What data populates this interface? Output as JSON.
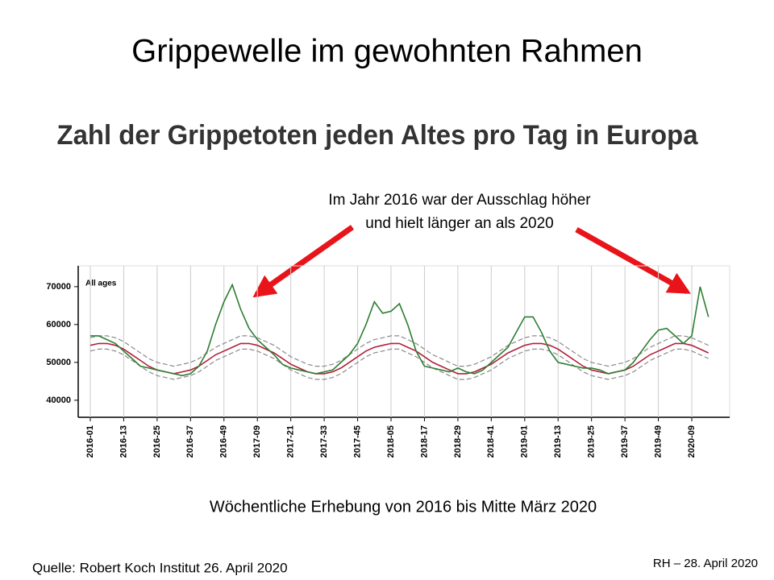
{
  "title": "Grippewelle im gewohnten Rahmen",
  "chart_data": {
    "type": "line",
    "title": "Zahl der Grippetoten jeden Altes pro Tag in Europa",
    "annotation": [
      "Im Jahr 2016 war der Ausschlag höher",
      "und hielt länger an als 2020"
    ],
    "panel_label": "All ages",
    "x_label": "Wöchentliche Erhebung von 2016 bis Mitte März 2020",
    "categories": [
      "2016-01",
      null,
      null,
      null,
      "2016-13",
      null,
      null,
      null,
      "2016-25",
      null,
      null,
      null,
      "2016-37",
      null,
      null,
      null,
      "2016-49",
      null,
      null,
      null,
      "2017-09",
      null,
      null,
      null,
      "2017-21",
      null,
      null,
      null,
      "2017-33",
      null,
      null,
      null,
      "2017-45",
      null,
      null,
      null,
      "2018-05",
      null,
      null,
      null,
      "2018-17",
      null,
      null,
      null,
      "2018-29",
      null,
      null,
      null,
      "2018-41",
      null,
      null,
      null,
      "2019-01",
      null,
      null,
      null,
      "2019-13",
      null,
      null,
      null,
      "2019-25",
      null,
      null,
      null,
      "2019-37",
      null,
      null,
      null,
      "2019-49",
      null,
      null,
      null,
      "2020-09",
      null,
      null
    ],
    "series": [
      {
        "name": "upper",
        "color": "#8a8a8a",
        "dashed": true,
        "values": [
          56500,
          57000,
          57000,
          56500,
          55500,
          54000,
          52500,
          51000,
          50000,
          49500,
          49000,
          49500,
          50000,
          51000,
          52500,
          54000,
          55000,
          56000,
          57000,
          57000,
          56500,
          55500,
          54500,
          53000,
          51500,
          50500,
          49500,
          49000,
          49000,
          49500,
          50500,
          52000,
          53500,
          55000,
          56000,
          56500,
          57000,
          57000,
          56000,
          55000,
          53500,
          52000,
          51000,
          50000,
          49000,
          49000,
          49500,
          50500,
          51500,
          53000,
          54500,
          55500,
          56500,
          57000,
          57000,
          56500,
          55500,
          54000,
          52500,
          51000,
          50000,
          49500,
          49000,
          49500,
          50000,
          51000,
          52500,
          54000,
          55000,
          56000,
          57000,
          57000,
          56500,
          55500,
          54500
        ]
      },
      {
        "name": "lower",
        "color": "#8a8a8a",
        "dashed": true,
        "values": [
          53000,
          53500,
          53500,
          53000,
          52000,
          50500,
          49000,
          47500,
          46500,
          46000,
          45500,
          46000,
          46500,
          47500,
          49000,
          50500,
          51500,
          52500,
          53500,
          53500,
          53000,
          52000,
          51000,
          49500,
          48000,
          47000,
          46000,
          45500,
          45500,
          46000,
          47000,
          48500,
          50000,
          51500,
          52500,
          53000,
          53500,
          53500,
          52500,
          51500,
          50000,
          48500,
          47500,
          46500,
          45500,
          45500,
          46000,
          47000,
          48000,
          49500,
          51000,
          52000,
          53000,
          53500,
          53500,
          53000,
          52000,
          50500,
          49000,
          47500,
          46500,
          46000,
          45500,
          46000,
          46500,
          47500,
          49000,
          50500,
          51500,
          52500,
          53500,
          53500,
          53000,
          52000,
          51000
        ]
      },
      {
        "name": "baseline",
        "color": "#b0203a",
        "dashed": false,
        "values": [
          54500,
          55000,
          55000,
          54500,
          53500,
          52000,
          50500,
          49000,
          48000,
          47500,
          47000,
          47500,
          48000,
          49000,
          50500,
          52000,
          53000,
          54000,
          55000,
          55000,
          54500,
          53500,
          52500,
          51000,
          49500,
          48500,
          47500,
          47000,
          47000,
          47500,
          48500,
          50000,
          51500,
          53000,
          54000,
          54500,
          55000,
          55000,
          54000,
          53000,
          51500,
          50000,
          49000,
          48000,
          47000,
          47000,
          47500,
          48500,
          49500,
          51000,
          52500,
          53500,
          54500,
          55000,
          55000,
          54500,
          53500,
          52000,
          50500,
          49000,
          48000,
          47500,
          47000,
          47500,
          48000,
          49000,
          50500,
          52000,
          53000,
          54000,
          55000,
          55000,
          54500,
          53500,
          52500
        ]
      },
      {
        "name": "observed",
        "color": "#2e7d32",
        "dashed": false,
        "values": [
          57000,
          57000,
          56000,
          55000,
          53000,
          51000,
          49000,
          48500,
          48000,
          47500,
          47000,
          46500,
          47000,
          49000,
          53000,
          60000,
          66000,
          70500,
          64000,
          59000,
          56000,
          54000,
          52000,
          49500,
          48500,
          48000,
          47500,
          47000,
          47500,
          48000,
          50000,
          52000,
          55000,
          60000,
          66000,
          63000,
          63500,
          65500,
          60000,
          53000,
          49000,
          48500,
          48000,
          47500,
          48500,
          47500,
          47000,
          48000,
          50000,
          52000,
          54000,
          58000,
          62000,
          62000,
          58000,
          53000,
          50000,
          49500,
          49000,
          48500,
          48500,
          48000,
          47000,
          47500,
          48000,
          50000,
          53000,
          56000,
          58500,
          59000,
          57000,
          55000,
          57000,
          70000,
          62000
        ]
      }
    ],
    "ylim": [
      35500,
      75500
    ],
    "yticks": [
      40000,
      50000,
      60000,
      70000
    ],
    "grid": true
  },
  "source": "Quelle: Robert Koch Institut 26. April 2020",
  "footer": "RH – 28. April 2020"
}
